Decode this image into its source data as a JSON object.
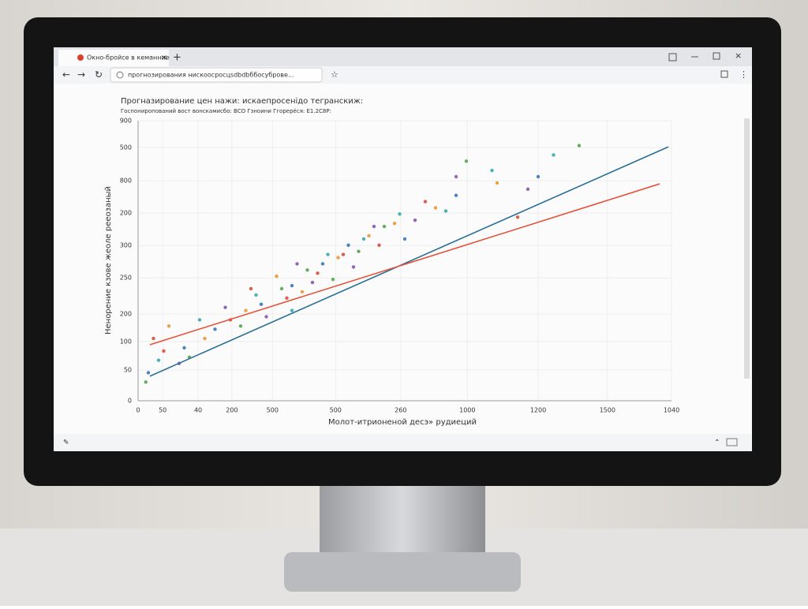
{
  "browser": {
    "tab_title": "Окно-бройсе в кеманние",
    "url": "прогнозирования нискоосросцsdbdbббосуброве..."
  },
  "chart_data": {
    "type": "scatter",
    "title": "Прогназирование цен нажи: искаепросенідо тегранскиж:",
    "subtitle": "Госпониропований вост вонскамисбо: BCO Гзноини Ггорерёся: Е1.2С8Р:",
    "x_label": "Молот-итрионеной десэ» рудиеций",
    "y_label": "Ненорение кзове жеоле рееозаный",
    "xlim": [
      0,
      1040
    ],
    "ylim": [
      0,
      900
    ],
    "grid": true,
    "xticks": [
      0,
      {
        "value": 48,
        "label": "50"
      },
      {
        "value": 117,
        "label": "40"
      },
      {
        "value": 183,
        "label": "200"
      },
      {
        "value": 262,
        "label": "500"
      },
      {
        "value": 385,
        "label": "500"
      },
      {
        "value": 512,
        "label": "260"
      },
      {
        "value": 642,
        "label": "1000"
      },
      {
        "value": 780,
        "label": "1200"
      },
      {
        "value": 915,
        "label": "1500"
      },
      {
        "value": 1040,
        "label": "1040"
      }
    ],
    "yticks": [
      0,
      {
        "value": 99,
        "label": "50"
      },
      {
        "value": 190,
        "label": "100"
      },
      {
        "value": 279,
        "label": "200"
      },
      {
        "value": 395,
        "label": "250"
      },
      {
        "value": 499,
        "label": "300"
      },
      {
        "value": 603,
        "label": "200"
      },
      {
        "value": 707,
        "label": "800"
      },
      {
        "value": 814,
        "label": "500"
      },
      {
        "value": 900,
        "label": "900"
      }
    ],
    "series": [
      {
        "color": "#d9412f",
        "x": [
          30,
          50,
          180,
          220,
          290,
          350,
          400,
          470,
          560,
          740
        ],
        "values": [
          200,
          160,
          260,
          360,
          330,
          410,
          470,
          500,
          640,
          590
        ]
      },
      {
        "color": "#2f6fb0",
        "x": [
          20,
          90,
          150,
          240,
          300,
          360,
          410,
          520,
          620,
          780
        ],
        "values": [
          90,
          170,
          230,
          310,
          370,
          440,
          500,
          520,
          660,
          720
        ]
      },
      {
        "color": "#4a9e45",
        "x": [
          15,
          100,
          200,
          280,
          330,
          380,
          430,
          480,
          640,
          860
        ],
        "values": [
          60,
          140,
          240,
          360,
          420,
          390,
          480,
          560,
          770,
          820
        ]
      },
      {
        "color": "#e8902a",
        "x": [
          60,
          130,
          210,
          270,
          320,
          390,
          450,
          500,
          580,
          700
        ],
        "values": [
          240,
          200,
          290,
          400,
          350,
          460,
          530,
          570,
          620,
          700
        ]
      },
      {
        "color": "#7b4fa6",
        "x": [
          80,
          170,
          250,
          310,
          340,
          420,
          460,
          540,
          620,
          760
        ],
        "values": [
          120,
          300,
          270,
          440,
          380,
          430,
          560,
          580,
          720,
          680
        ]
      },
      {
        "color": "#2aa3a8",
        "x": [
          40,
          120,
          230,
          300,
          370,
          440,
          510,
          600,
          690,
          810
        ],
        "values": [
          130,
          260,
          340,
          290,
          470,
          520,
          600,
          610,
          740,
          790
        ]
      }
    ],
    "lines": [
      {
        "color": "#2a6f96",
        "x": [
          23,
          1034
        ],
        "values": [
          79,
          816
        ]
      },
      {
        "color": "#e5543a",
        "x": [
          23,
          1017
        ],
        "values": [
          180,
          697
        ]
      }
    ]
  }
}
